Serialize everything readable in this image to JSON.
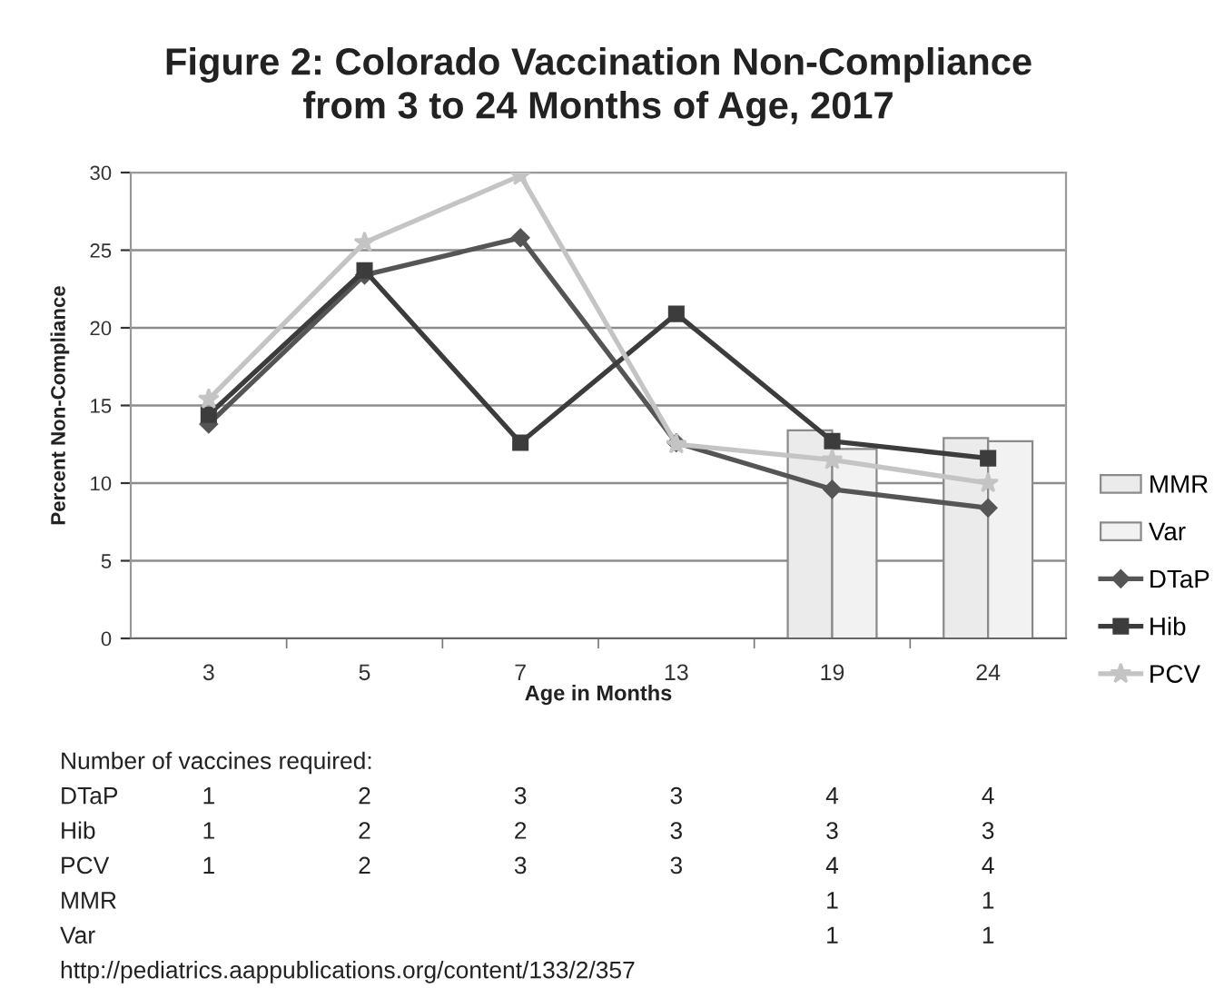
{
  "chart_data": {
    "type": "line",
    "title": "Figure 2: Colorado Vaccination Non-Compliance\nfrom 3 to 24 Months of Age, 2017",
    "xlabel": "Age in Months",
    "ylabel": "Percent Non-Compliance",
    "categories": [
      "3",
      "5",
      "7",
      "13",
      "19",
      "24"
    ],
    "series": [
      {
        "name": "MMR",
        "type": "bar",
        "color": "#ebebeb",
        "values": [
          null,
          null,
          null,
          null,
          13.4,
          12.9
        ]
      },
      {
        "name": "Var",
        "type": "bar",
        "color": "#f2f2f2",
        "values": [
          null,
          null,
          null,
          null,
          12.2,
          12.7
        ]
      },
      {
        "name": "DTaP",
        "color": "#555555",
        "marker": "diamond",
        "values": [
          13.8,
          23.4,
          25.8,
          12.6,
          9.6,
          8.4
        ]
      },
      {
        "name": "Hib",
        "color": "#3c3c3c",
        "marker": "square",
        "values": [
          14.4,
          23.7,
          12.6,
          20.9,
          12.7,
          11.6
        ]
      },
      {
        "name": "PCV",
        "color": "#c4c4c4",
        "marker": "star",
        "values": [
          15.4,
          25.5,
          29.8,
          12.5,
          11.5,
          10.0
        ]
      }
    ],
    "ylim": [
      0,
      30
    ],
    "yticks": [
      0,
      5,
      10,
      15,
      20,
      25,
      30
    ],
    "grid": "y",
    "legend": "right",
    "line_style": "solid",
    "annotations": [
      "Number of vaccines required:",
      "DTaP\t1\t2\t3\t3\t4\t4",
      "Hib\t1\t2\t2\t3\t3\t3",
      "PCV\t1\t2\t3\t3\t4\t4",
      "MMR\t\t\t\t\t1\t1",
      "Var\t\t\t\t\t1\t1",
      "http://pediatrics.aappublications.org/content/133/2/357"
    ]
  }
}
